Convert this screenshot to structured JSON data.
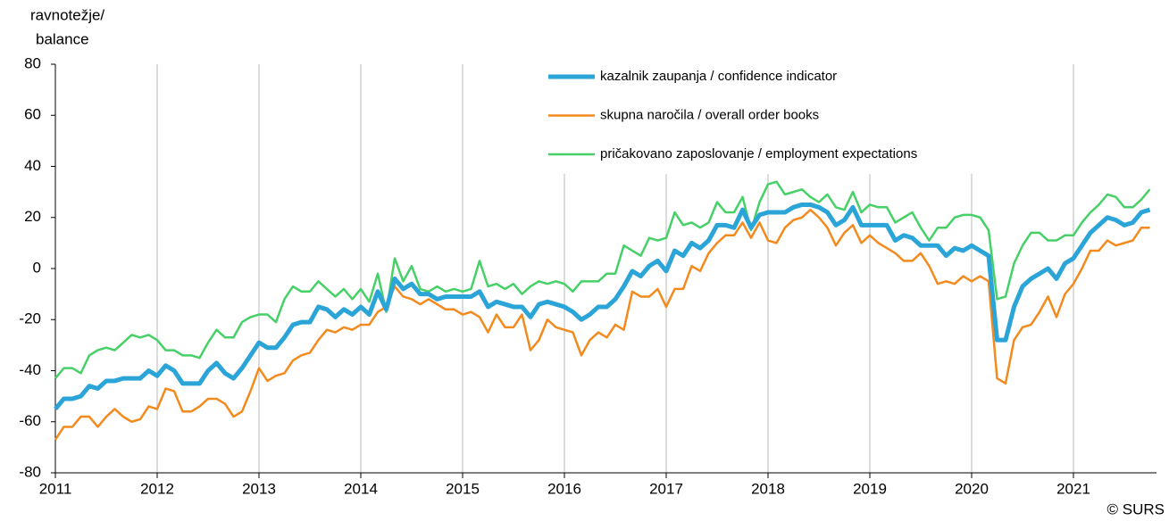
{
  "chart_data": {
    "type": "line",
    "ylabel": [
      "ravnotežje/",
      "balance"
    ],
    "source": "© SURS",
    "categories": [
      "2011",
      null,
      null,
      null,
      null,
      null,
      null,
      null,
      null,
      null,
      null,
      null,
      "2012",
      null,
      null,
      null,
      null,
      null,
      null,
      null,
      null,
      null,
      null,
      null,
      "2013",
      null,
      null,
      null,
      null,
      null,
      null,
      null,
      null,
      null,
      null,
      null,
      "2014",
      null,
      null,
      null,
      null,
      null,
      null,
      null,
      null,
      null,
      null,
      null,
      "2015",
      null,
      null,
      null,
      null,
      null,
      null,
      null,
      null,
      null,
      null,
      null,
      "2016",
      null,
      null,
      null,
      null,
      null,
      null,
      null,
      null,
      null,
      null,
      null,
      "2017",
      null,
      null,
      null,
      null,
      null,
      null,
      null,
      null,
      null,
      null,
      null,
      "2018",
      null,
      null,
      null,
      null,
      null,
      null,
      null,
      null,
      null,
      null,
      null,
      "2019",
      null,
      null,
      null,
      null,
      null,
      null,
      null,
      null,
      null,
      null,
      null,
      "2020",
      null,
      null,
      null,
      null,
      null,
      null,
      null,
      null,
      null,
      null,
      null,
      "2021",
      null,
      null,
      null,
      null,
      null,
      null,
      null,
      null,
      null
    ],
    "series": [
      {
        "name": "kazalnik zaupanja / confidence indicator",
        "color": "#2ba4d8",
        "values": [
          -55,
          -51,
          -51,
          -50,
          -46,
          -47,
          -44,
          -44,
          -43,
          -43,
          -43,
          -40,
          -42,
          -38,
          -40,
          -45,
          -45,
          -45,
          -40,
          -37,
          -41,
          -43,
          -39,
          -34,
          -29,
          -31,
          -31,
          -27,
          -22,
          -21,
          -21,
          -15,
          -16,
          -19,
          -16,
          -18,
          -15,
          -18,
          -9,
          -16,
          -4,
          -8,
          -6,
          -10,
          -10,
          -12,
          -11,
          -11,
          -11,
          -11,
          -9,
          -15,
          -13,
          -14,
          -15,
          -15,
          -19,
          -14,
          -13,
          -14,
          -15,
          -17,
          -20,
          -18,
          -15,
          -15,
          -12,
          -7,
          -1,
          -3,
          1,
          3,
          -1,
          7,
          5,
          10,
          8,
          11,
          17,
          17,
          16,
          23,
          16,
          21,
          22,
          22,
          22,
          24,
          25,
          25,
          24,
          22,
          17,
          19,
          24,
          17,
          17,
          17,
          17,
          11,
          13,
          12,
          9,
          9,
          9,
          5,
          8,
          7,
          9,
          7,
          5,
          -28,
          -28,
          -15,
          -7,
          -4,
          -2,
          0,
          -4,
          2,
          4,
          9,
          14,
          17,
          20,
          19,
          17,
          18,
          22,
          23
        ]
      },
      {
        "name": "skupna naročila / overall order books",
        "color": "#f28a1e",
        "values": [
          -67,
          -62,
          -62,
          -58,
          -58,
          -62,
          -58,
          -55,
          -58,
          -60,
          -59,
          -54,
          -55,
          -47,
          -48,
          -56,
          -56,
          -54,
          -51,
          -51,
          -53,
          -58,
          -56,
          -48,
          -39,
          -44,
          -42,
          -41,
          -36,
          -34,
          -33,
          -28,
          -24,
          -25,
          -23,
          -24,
          -22,
          -22,
          -17,
          -15,
          -7,
          -11,
          -12,
          -14,
          -12,
          -14,
          -16,
          -16,
          -18,
          -17,
          -19,
          -25,
          -18,
          -23,
          -23,
          -18,
          -32,
          -28,
          -20,
          -23,
          -24,
          -25,
          -34,
          -28,
          -25,
          -27,
          -22,
          -24,
          -9,
          -11,
          -11,
          -8,
          -15,
          -8,
          -8,
          1,
          -1,
          6,
          10,
          13,
          13,
          18,
          12,
          18,
          11,
          10,
          16,
          19,
          20,
          23,
          20,
          16,
          9,
          14,
          17,
          10,
          13,
          10,
          8,
          6,
          3,
          3,
          6,
          1,
          -6,
          -5,
          -6,
          -3,
          -5,
          -3,
          -5,
          -43,
          -45,
          -28,
          -23,
          -22,
          -17,
          -11,
          -19,
          -10,
          -6,
          0,
          7,
          7,
          11,
          9,
          10,
          11,
          16,
          16
        ]
      },
      {
        "name": "pričakovano zaposlovanje / employment expectations",
        "color": "#47d068",
        "values": [
          -43,
          -39,
          -39,
          -41,
          -34,
          -32,
          -31,
          -32,
          -29,
          -26,
          -27,
          -26,
          -28,
          -32,
          -32,
          -34,
          -34,
          -35,
          -29,
          -24,
          -27,
          -27,
          -21,
          -19,
          -18,
          -18,
          -21,
          -12,
          -7,
          -9,
          -9,
          -5,
          -8,
          -11,
          -8,
          -12,
          -8,
          -13,
          -2,
          -17,
          4,
          -5,
          1,
          -8,
          -9,
          -7,
          -9,
          -8,
          -9,
          -8,
          3,
          -7,
          -6,
          -8,
          -6,
          -10,
          -7,
          -5,
          -6,
          -5,
          -6,
          -9,
          -5,
          -5,
          -5,
          -2,
          -2,
          9,
          7,
          5,
          12,
          11,
          12,
          22,
          17,
          18,
          16,
          18,
          26,
          22,
          22,
          28,
          15,
          26,
          33,
          34,
          29,
          30,
          31,
          28,
          26,
          29,
          24,
          23,
          30,
          22,
          25,
          24,
          24,
          18,
          20,
          22,
          16,
          11,
          16,
          16,
          20,
          21,
          21,
          20,
          15,
          -12,
          -11,
          2,
          9,
          14,
          14,
          11,
          11,
          13,
          13,
          18,
          22,
          25,
          29,
          28,
          24,
          24,
          27,
          31
        ]
      }
    ],
    "ylim": [
      -80,
      80
    ],
    "yticks": [
      -80,
      -60,
      -40,
      -20,
      0,
      20,
      40,
      60,
      80
    ],
    "xgrid": true,
    "legend": "top"
  }
}
